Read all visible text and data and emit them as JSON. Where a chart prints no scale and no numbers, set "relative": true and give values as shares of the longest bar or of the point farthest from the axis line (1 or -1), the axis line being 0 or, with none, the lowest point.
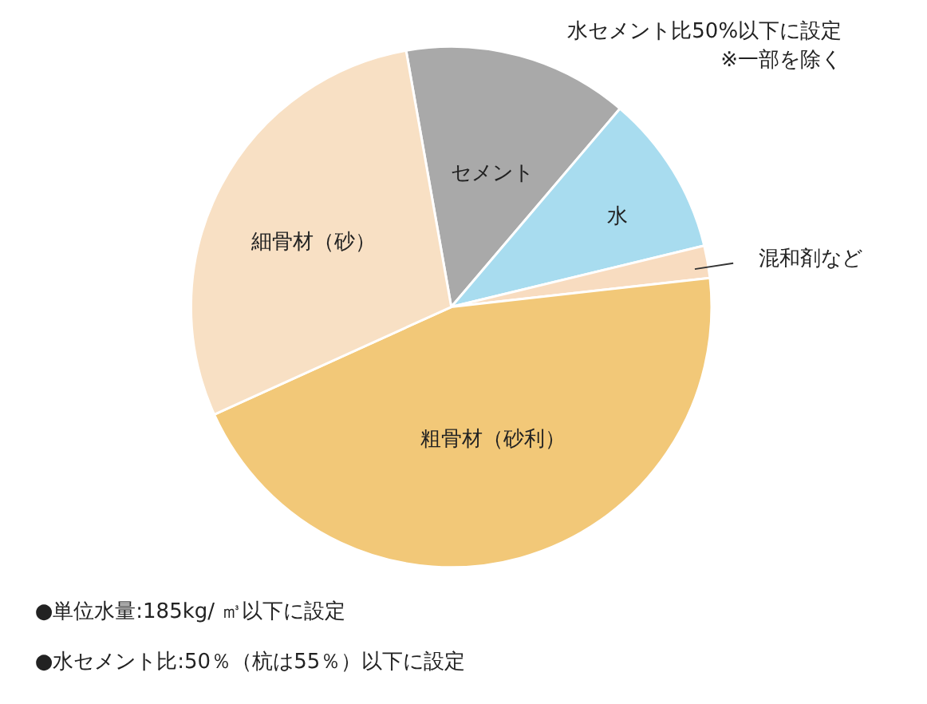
{
  "chart_data": {
    "type": "pie",
    "relative": true,
    "categories": [
      "セメント",
      "水",
      "混和剤など",
      "粗骨材（砂利）",
      "細骨材（砂）"
    ],
    "values": [
      14,
      10,
      2,
      45,
      29
    ],
    "colors": [
      "#a9a9a9",
      "#a8dcef",
      "#f8dcc0",
      "#f2c878",
      "#f8e0c4"
    ],
    "annotations": [
      "水セメント比50%以下に設定\n※一部を除く",
      "●単位水量:185kg/ ㎥以下に設定",
      "●水セメント比:50％（杭は55％）以下に設定"
    ]
  }
}
